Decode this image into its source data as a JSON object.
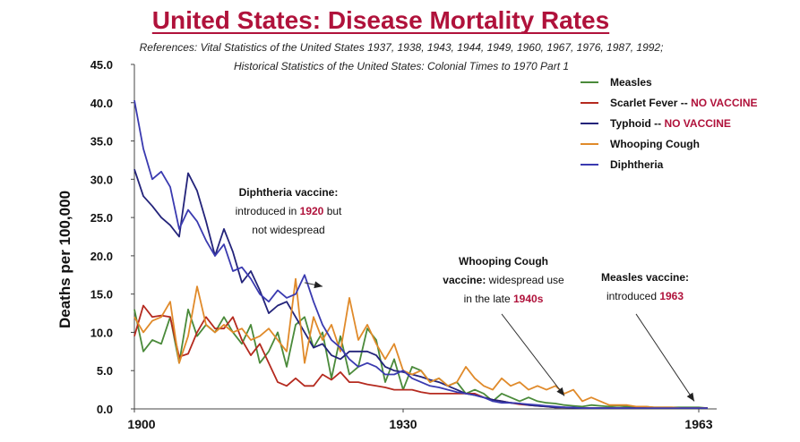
{
  "title": "United States: Disease Mortality Rates",
  "references": {
    "line1": "References: Vital Statistics of the United States 1937, 1938, 1943, 1944, 1949, 1960, 1967, 1976, 1987, 1992;",
    "line2": "Historical Statistics of the United States: Colonial Times to 1970 Part 1"
  },
  "annotations": [
    {
      "lines": [
        [
          {
            "t": "Diphtheria vaccine:",
            "s": "b"
          }
        ],
        [
          {
            "t": "introduced in "
          },
          {
            "t": "1920",
            "s": "r"
          },
          {
            "t": " but"
          }
        ],
        [
          {
            "t": "not widespread"
          }
        ]
      ],
      "arrow_from": [
        1919,
        16.5
      ],
      "arrow_to": [
        1921,
        16.0
      ]
    },
    {
      "lines": [
        [
          {
            "t": "Whooping Cough",
            "s": "b"
          }
        ],
        [
          {
            "t": "vaccine:",
            "s": "b"
          },
          {
            "t": " widespread use"
          }
        ],
        [
          {
            "t": "in the late "
          },
          {
            "t": "1940s",
            "s": "r"
          }
        ]
      ],
      "arrow_from": [
        1941,
        12.4
      ],
      "arrow_to": [
        1948,
        1.7
      ]
    },
    {
      "lines": [
        [
          {
            "t": "Measles vaccine:",
            "s": "b"
          }
        ],
        [
          {
            "t": "introduced "
          },
          {
            "t": "1963",
            "s": "r"
          }
        ]
      ],
      "arrow_from": [
        1956,
        12.4
      ],
      "arrow_to": [
        1962.5,
        1.0
      ]
    }
  ],
  "chart_data": {
    "type": "line",
    "title": "United States: Disease Mortality Rates",
    "xlabel": "",
    "ylabel": "Deaths per 100,000",
    "xlim": [
      1900,
      1965
    ],
    "ylim": [
      0,
      45
    ],
    "x_ticks": [
      1900,
      1930,
      1963
    ],
    "y_ticks": [
      "0.0",
      "5.0",
      "10.0",
      "15.0",
      "20.0",
      "25.0",
      "30.0",
      "35.0",
      "40.0",
      "45.0"
    ],
    "legend_position": "top-right",
    "series": [
      {
        "name": "Measles",
        "color": "#4a8a3a",
        "x_start": 1900,
        "values": [
          13.0,
          7.5,
          9.0,
          8.5,
          12.0,
          6.0,
          13.0,
          9.5,
          11.0,
          10.0,
          12.0,
          10.0,
          8.5,
          11.0,
          6.0,
          7.5,
          10.0,
          5.5,
          11.0,
          12.0,
          8.0,
          10.0,
          4.0,
          9.5,
          4.5,
          5.5,
          10.5,
          9.0,
          3.5,
          6.5,
          2.5,
          5.5,
          5.0,
          3.5,
          4.0,
          3.0,
          3.5,
          2.0,
          2.5,
          2.0,
          1.0,
          2.0,
          1.5,
          1.0,
          1.5,
          1.0,
          0.8,
          0.7,
          0.5,
          0.4,
          0.3,
          0.5,
          0.4,
          0.3,
          0.4,
          0.3,
          0.2,
          0.3,
          0.2,
          0.2,
          0.2,
          0.2,
          0.2,
          0.2,
          0.1
        ]
      },
      {
        "name": "Scarlet Fever",
        "name_suffix": "-- NO VACCINE",
        "color": "#b52a1f",
        "x_start": 1900,
        "values": [
          9.5,
          13.5,
          12.0,
          12.2,
          12.0,
          6.8,
          7.2,
          10.0,
          12.0,
          10.5,
          10.5,
          12.0,
          9.0,
          7.0,
          8.5,
          6.0,
          3.5,
          3.0,
          4.0,
          3.0,
          3.0,
          4.5,
          3.8,
          4.8,
          3.5,
          3.5,
          3.2,
          3.0,
          2.8,
          2.5,
          2.5,
          2.5,
          2.2,
          2.0,
          2.0,
          2.0,
          2.0,
          2.0,
          2.0,
          1.5,
          1.2,
          1.0,
          0.8,
          0.6,
          0.5,
          0.4,
          0.3,
          0.2,
          0.2,
          0.1,
          0.1,
          0.1,
          0.1,
          0.1,
          0.1,
          0.1,
          0.1,
          0.1,
          0.1,
          0.1,
          0.1,
          0.1,
          0.1,
          0.1,
          0.1
        ]
      },
      {
        "name": "Typhoid",
        "name_suffix": "-- NO VACCINE",
        "color": "#23237a",
        "x_start": 1900,
        "values": [
          31.3,
          27.8,
          26.5,
          25.0,
          24.0,
          22.5,
          30.8,
          28.5,
          24.5,
          20.0,
          23.5,
          20.5,
          16.5,
          18.0,
          15.5,
          12.5,
          13.5,
          14.0,
          12.0,
          10.0,
          8.0,
          8.5,
          7.0,
          6.5,
          7.5,
          7.5,
          7.5,
          7.0,
          5.5,
          5.0,
          4.8,
          4.5,
          4.2,
          3.8,
          3.5,
          3.0,
          2.5,
          2.0,
          1.8,
          1.5,
          1.2,
          1.0,
          0.8,
          0.7,
          0.5,
          0.4,
          0.3,
          0.2,
          0.2,
          0.1,
          0.1,
          0.1,
          0.1,
          0.1,
          0.1,
          0.1,
          0.1,
          0.1,
          0.1,
          0.1,
          0.1,
          0.1,
          0.1,
          0.1,
          0.1
        ]
      },
      {
        "name": "Whooping Cough",
        "color": "#e08a2a",
        "x_start": 1900,
        "values": [
          12.0,
          10.0,
          11.5,
          12.0,
          14.0,
          6.0,
          9.5,
          16.0,
          11.0,
          10.0,
          11.0,
          10.0,
          10.5,
          9.0,
          9.5,
          10.5,
          9.0,
          7.5,
          17.0,
          6.0,
          12.0,
          9.0,
          11.0,
          7.5,
          14.5,
          9.0,
          11.0,
          8.5,
          6.5,
          8.5,
          5.0,
          4.5,
          5.0,
          3.5,
          4.0,
          3.0,
          3.5,
          5.5,
          4.0,
          3.0,
          2.5,
          4.0,
          3.0,
          3.5,
          2.5,
          3.0,
          2.5,
          3.0,
          2.0,
          2.5,
          1.0,
          1.5,
          1.0,
          0.5,
          0.5,
          0.5,
          0.3,
          0.3,
          0.2,
          0.2,
          0.2,
          0.1,
          0.1,
          0.1,
          0.1
        ]
      },
      {
        "name": "Diphtheria",
        "color": "#3a3ab0",
        "x_start": 1900,
        "values": [
          40.3,
          34.0,
          30.0,
          31.0,
          29.0,
          23.5,
          26.0,
          24.5,
          22.0,
          20.0,
          21.5,
          18.0,
          18.5,
          17.0,
          15.0,
          14.0,
          15.5,
          14.5,
          15.0,
          17.5,
          14.0,
          11.0,
          9.0,
          8.0,
          6.5,
          5.5,
          6.0,
          5.5,
          4.5,
          4.5,
          5.0,
          4.0,
          3.5,
          3.0,
          2.8,
          2.5,
          2.2,
          2.0,
          1.8,
          1.5,
          1.0,
          0.8,
          0.8,
          0.7,
          0.6,
          0.5,
          0.4,
          0.3,
          0.2,
          0.2,
          0.1,
          0.1,
          0.1,
          0.1,
          0.1,
          0.1,
          0.1,
          0.1,
          0.1,
          0.1,
          0.1,
          0.1,
          0.1,
          0.1,
          0.1
        ]
      }
    ]
  }
}
